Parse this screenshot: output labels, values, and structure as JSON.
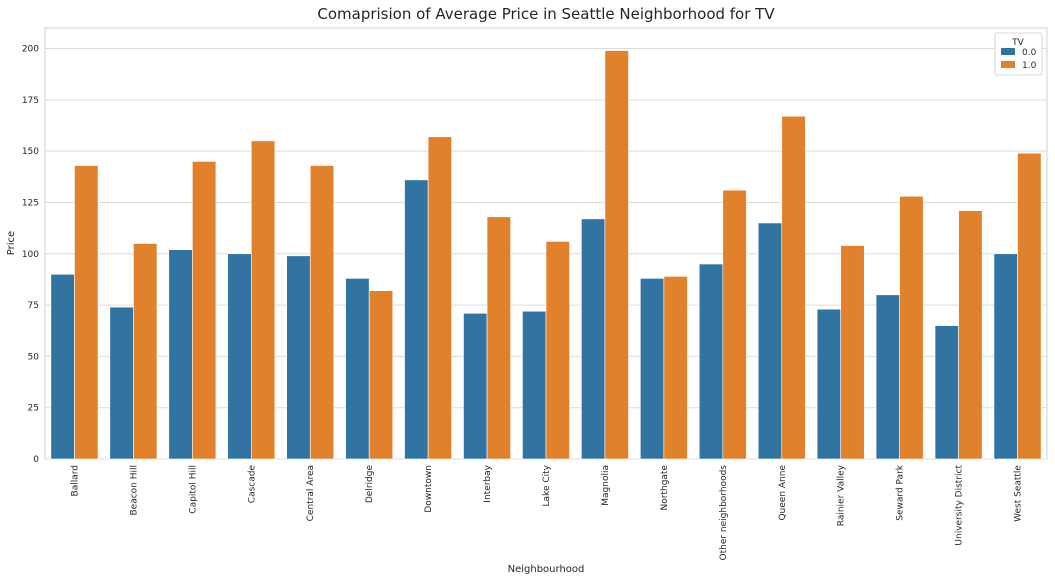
{
  "chart_data": {
    "type": "bar",
    "title": "Comaprision of Average Price in Seattle Neighborhood for TV",
    "xlabel": "Neighbourhood",
    "ylabel": "Price",
    "ylim": [
      0,
      210
    ],
    "yticks": [
      0,
      25,
      50,
      75,
      100,
      125,
      150,
      175,
      200
    ],
    "grid": "horizontal",
    "legend": {
      "title": "TV",
      "placement": "top-right"
    },
    "categories": [
      "Ballard",
      "Beacon Hill",
      "Capitol Hill",
      "Cascade",
      "Central Area",
      "Delridge",
      "Downtown",
      "Interbay",
      "Lake City",
      "Magnolia",
      "Northgate",
      "Other neighborhoods",
      "Queen Anne",
      "Rainier Valley",
      "Seward Park",
      "University District",
      "West Seattle"
    ],
    "series": [
      {
        "name": "0.0",
        "color": "#3274a1",
        "values": [
          90,
          74,
          102,
          100,
          99,
          88,
          136,
          71,
          72,
          117,
          88,
          95,
          115,
          73,
          80,
          65,
          100
        ]
      },
      {
        "name": "1.0",
        "color": "#e1812c",
        "values": [
          143,
          105,
          145,
          155,
          143,
          82,
          157,
          118,
          106,
          199,
          89,
          131,
          167,
          104,
          128,
          121,
          149
        ]
      }
    ]
  }
}
